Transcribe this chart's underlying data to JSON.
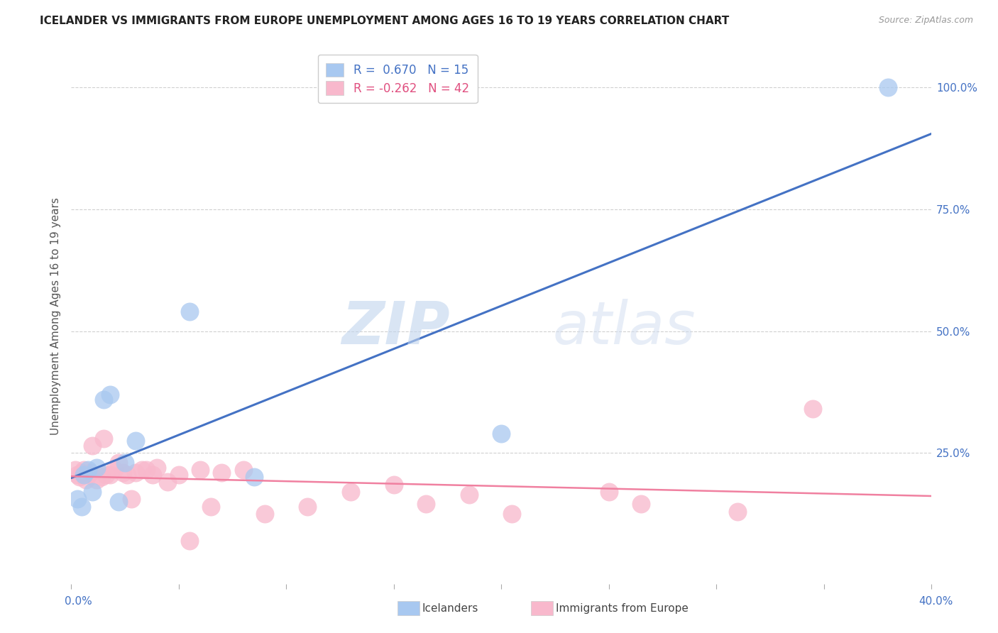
{
  "title": "ICELANDER VS IMMIGRANTS FROM EUROPE UNEMPLOYMENT AMONG AGES 16 TO 19 YEARS CORRELATION CHART",
  "source": "Source: ZipAtlas.com",
  "ylabel": "Unemployment Among Ages 16 to 19 years",
  "xlim": [
    0.0,
    0.4
  ],
  "ylim": [
    -0.02,
    1.08
  ],
  "yticks_right": [
    0.25,
    0.5,
    0.75,
    1.0
  ],
  "ytick_labels_right": [
    "25.0%",
    "50.0%",
    "75.0%",
    "100.0%"
  ],
  "blue_R": 0.67,
  "blue_N": 15,
  "pink_R": -0.262,
  "pink_N": 42,
  "blue_color": "#a8c8f0",
  "pink_color": "#f8b8cc",
  "blue_line_color": "#4472c4",
  "pink_line_color": "#f080a0",
  "legend_blue_label": "Icelanders",
  "legend_pink_label": "Immigrants from Europe",
  "watermark_zip": "ZIP",
  "watermark_atlas": "atlas",
  "blue_x": [
    0.003,
    0.005,
    0.006,
    0.008,
    0.01,
    0.012,
    0.015,
    0.018,
    0.022,
    0.025,
    0.03,
    0.055,
    0.085,
    0.2,
    0.38
  ],
  "blue_y": [
    0.155,
    0.14,
    0.205,
    0.215,
    0.17,
    0.22,
    0.36,
    0.37,
    0.15,
    0.23,
    0.275,
    0.54,
    0.2,
    0.29,
    1.0
  ],
  "pink_x": [
    0.002,
    0.003,
    0.004,
    0.005,
    0.006,
    0.007,
    0.008,
    0.009,
    0.01,
    0.012,
    0.014,
    0.015,
    0.016,
    0.018,
    0.02,
    0.022,
    0.024,
    0.026,
    0.028,
    0.03,
    0.033,
    0.035,
    0.038,
    0.04,
    0.045,
    0.05,
    0.055,
    0.06,
    0.065,
    0.07,
    0.08,
    0.09,
    0.11,
    0.13,
    0.15,
    0.165,
    0.185,
    0.205,
    0.25,
    0.265,
    0.31,
    0.345
  ],
  "pink_y": [
    0.215,
    0.205,
    0.2,
    0.21,
    0.215,
    0.195,
    0.205,
    0.21,
    0.265,
    0.195,
    0.2,
    0.28,
    0.205,
    0.205,
    0.215,
    0.23,
    0.21,
    0.205,
    0.155,
    0.21,
    0.215,
    0.215,
    0.205,
    0.22,
    0.19,
    0.205,
    0.07,
    0.215,
    0.14,
    0.21,
    0.215,
    0.125,
    0.14,
    0.17,
    0.185,
    0.145,
    0.165,
    0.125,
    0.17,
    0.145,
    0.13,
    0.34
  ],
  "background_color": "#ffffff",
  "grid_color": "#d0d0d0",
  "title_fontsize": 11,
  "source_fontsize": 9,
  "tick_fontsize": 11,
  "legend_fontsize": 12
}
